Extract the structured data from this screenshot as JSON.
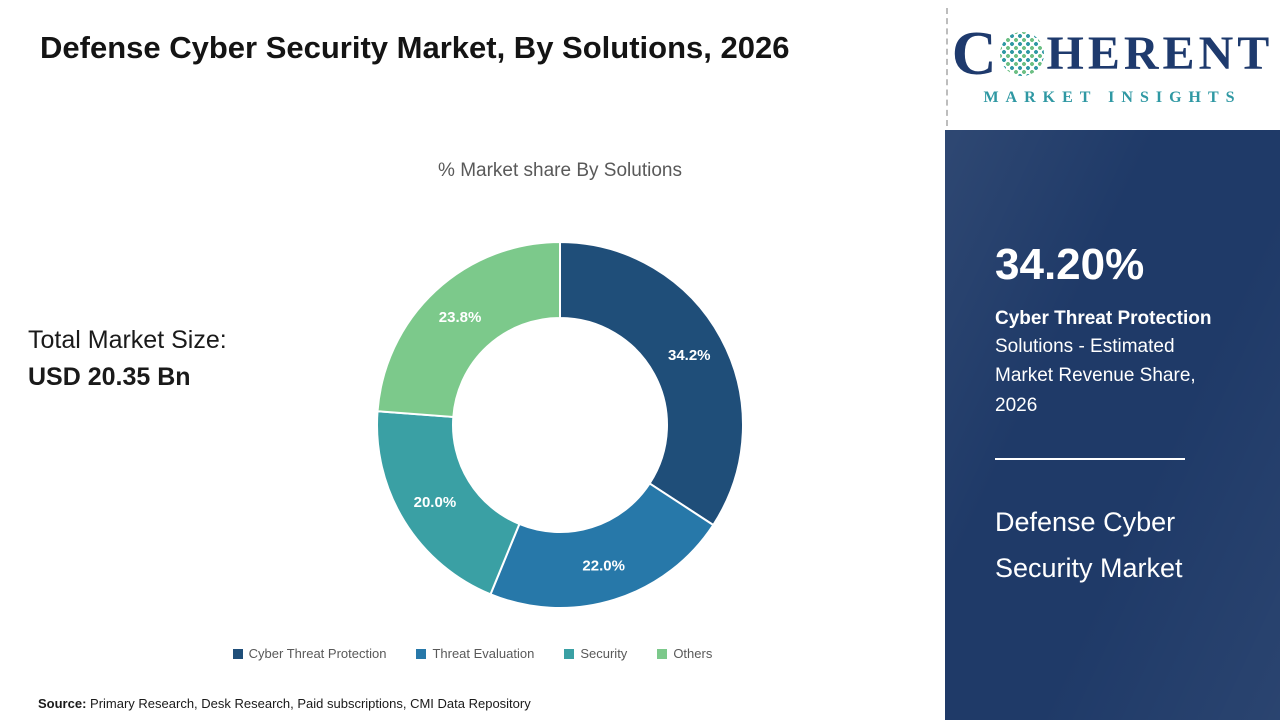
{
  "header": {
    "title": "Defense Cyber Security Market, By Solutions, 2026"
  },
  "logo": {
    "c": "C",
    "rest": "HERENT",
    "subtitle": "MARKET INSIGHTS"
  },
  "main": {
    "chart_title": "% Market share By Solutions",
    "total_label": "Total Market Size:",
    "total_value": "USD 20.35 Bn"
  },
  "chart_data": {
    "type": "pie",
    "subtype": "donut",
    "title": "% Market share By Solutions",
    "categories": [
      "Cyber Threat Protection",
      "Threat Evaluation",
      "Security",
      "Others"
    ],
    "values": [
      34.2,
      22.0,
      20.0,
      23.8
    ],
    "labels": [
      "34.2%",
      "22.0%",
      "20.0%",
      "23.8%"
    ],
    "colors": [
      "#1f4e79",
      "#2778a9",
      "#3aa0a4",
      "#7cc98b"
    ],
    "start_angle": 0,
    "direction": "clockwise",
    "legend_position": "bottom",
    "label_color": "#ffffff"
  },
  "sidebar": {
    "stat_value": "34.20%",
    "stat_bold": "Cyber Threat Protection",
    "stat_desc": "Solutions - Estimated Market Revenue Share, 2026",
    "market_name": "Defense Cyber Security Market"
  },
  "footer": {
    "source_label": "Source:",
    "source_text": " Primary Research, Desk Research, Paid subscriptions, CMI Data Repository"
  }
}
